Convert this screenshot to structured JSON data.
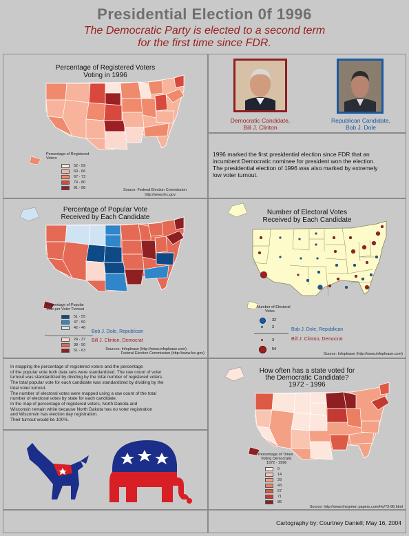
{
  "header": {
    "title": "Presidential Election 0f 1996",
    "subtitle_line1": "The Democratic Party is elected to a second term",
    "subtitle_line2": "for the first time since FDR."
  },
  "registered_voters": {
    "title_line1": "Percentage of Registered Voters",
    "title_line2": "Voting in 1996",
    "legend_title_line1": "Percentage of Registered",
    "legend_title_line2": "Voters",
    "legend": [
      {
        "label": "52 - 59",
        "color": "#fde6dc"
      },
      {
        "label": "60 - 66",
        "color": "#f7b39b"
      },
      {
        "label": "67 - 73",
        "color": "#ef8a6d"
      },
      {
        "label": "74 - 80",
        "color": "#d9483d"
      },
      {
        "label": "81 - 88",
        "color": "#9b1f24"
      }
    ],
    "source_line1": "Source: Federal Election Commission",
    "source_line2": "http://www.fec.gov"
  },
  "candidates": {
    "democrat_line1": "Democratic Candidate,",
    "democrat_line2": "Bill J. Clinton",
    "republican_line1": "Republican Candidate,",
    "republican_line2": "Bob J. Dole"
  },
  "intro_text": {
    "line1": "1996 marked the first presidential election since FDR that an",
    "line2": "incumbent Democratic nominee for president won the election.",
    "line3": "The presidential election of 1996 was also marked by extremely",
    "line4": "low voter turnout."
  },
  "popular_vote": {
    "title_line1": "Percentage of Popular Vote",
    "title_line2": "Received by Each Candidate",
    "legend_title_line1": "Percentage of Popular",
    "legend_title_line2": "Vote per Voter Turnout",
    "dole_legend": [
      {
        "label": "51 - 55",
        "color": "#0d4a86"
      },
      {
        "label": "47 - 50",
        "color": "#2f86c8"
      },
      {
        "label": "42 - 46",
        "color": "#cfe3f3"
      }
    ],
    "dole_label": "Bob J. Dole, Republican",
    "clinton_legend": [
      {
        "label": "24 - 37",
        "color": "#fbd9cf"
      },
      {
        "label": "38 - 50",
        "color": "#e46a55"
      },
      {
        "label": "51 - 63",
        "color": "#8e1f22"
      }
    ],
    "clinton_label": "Bill J. Clinton, Democrat",
    "source_line1": "Sources:  Infoplease (http://www.infoplease.com)",
    "source_line2": "Federal Election Commission (http://www.fec.gov)"
  },
  "electoral_votes": {
    "title_line1": "Number of Electoral Votes",
    "title_line2": "Received by Each Candidate",
    "legend_title_line1": "Number of Electoral",
    "legend_title_line2": "Votes",
    "dole_sizes": [
      "32",
      "3"
    ],
    "dole_label": "Bob J. Dole, Republican",
    "clinton_sizes": [
      "3",
      "54"
    ],
    "clinton_label": "Bill J. Clinton, Democrat",
    "source": "Source:  Infoplease (http://www.infoplease.com)"
  },
  "method_text": {
    "lines": [
      "In mapping the percentage of registered voters and the percentage",
      "of the popular vote both data sets were standardized.   The raw count of voter",
      "turnout was standardized by dividing by the total number of registered voters.",
      "The total popular vote for each candidate was standardized by dividing by the",
      "total voter turnout.",
      "The number of electoral votes were mapped using a raw count of the total",
      "number of electoral votes by state for each candidate.",
      "In the map of percentage  of registered voters, North Dakota and",
      "Wisconsin remain white because North Dakota has no voter registration",
      "and Wisconsin has election day registration.",
      "Their turnout would be 100%."
    ]
  },
  "how_often": {
    "title_line1": "How often has a state voted for",
    "title_line2": "the Democratic Candidate?",
    "title_line3": "1972 - 1996",
    "legend_title_line1": "Percentage of Times",
    "legend_title_line2": "Voting Democratic",
    "legend_title_line3": "1972 - 1996",
    "legend": [
      {
        "label": "0",
        "color": "#fde6dc"
      },
      {
        "label": "14",
        "color": "#f9c4b0"
      },
      {
        "label": "29",
        "color": "#f4a085"
      },
      {
        "label": "43",
        "color": "#ec7f62"
      },
      {
        "label": "57",
        "color": "#dd5a45"
      },
      {
        "label": "71",
        "color": "#c33a33"
      },
      {
        "label": "86",
        "color": "#8e1f22"
      }
    ],
    "source": "Source:  http://www.thegreen papers.com/Hx/73-96.html"
  },
  "footer": {
    "credit": "Cartography by:  Courtney Daniell; May 16, 2004"
  },
  "colors": {
    "background": "#c9c9c9",
    "democrat": "#9b1f1f",
    "republican": "#1a5aa0",
    "heading_gray": "#6f6f6f"
  },
  "icons": [
    "democratic-donkey-icon",
    "republican-elephant-icon"
  ]
}
